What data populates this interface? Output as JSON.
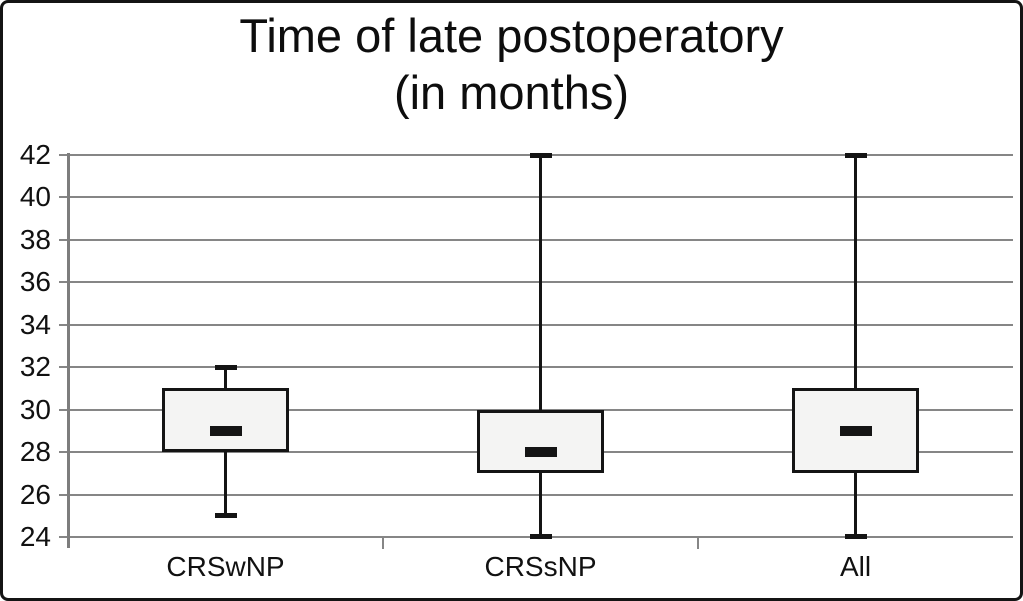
{
  "title": {
    "line1": "Time of late postoperatory",
    "line2": "(in months)"
  },
  "chart_data": {
    "type": "boxplot",
    "title": "Time of late postoperatory (in months)",
    "categories": [
      "CRSwNP",
      "CRSsNP",
      "All"
    ],
    "series": [
      {
        "name": "CRSwNP",
        "min": 25,
        "q1": 28,
        "median": 29,
        "q3": 31,
        "max": 32
      },
      {
        "name": "CRSsNP",
        "min": 24,
        "q1": 27,
        "median": 28,
        "q3": 30,
        "max": 42
      },
      {
        "name": "All",
        "min": 24,
        "q1": 27,
        "median": 29,
        "q3": 31,
        "max": 42
      }
    ],
    "ylim": [
      24,
      42
    ],
    "yticks": [
      42,
      40,
      38,
      36,
      34,
      32,
      30,
      28,
      26,
      24
    ],
    "xlabel": "",
    "ylabel": "",
    "grid": true,
    "legend": "none"
  },
  "colors": {
    "background": "#ffffff",
    "gridline": "#868686",
    "axis": "#7d7d7d",
    "box_fill": "#f4f4f3",
    "line": "#141414"
  }
}
